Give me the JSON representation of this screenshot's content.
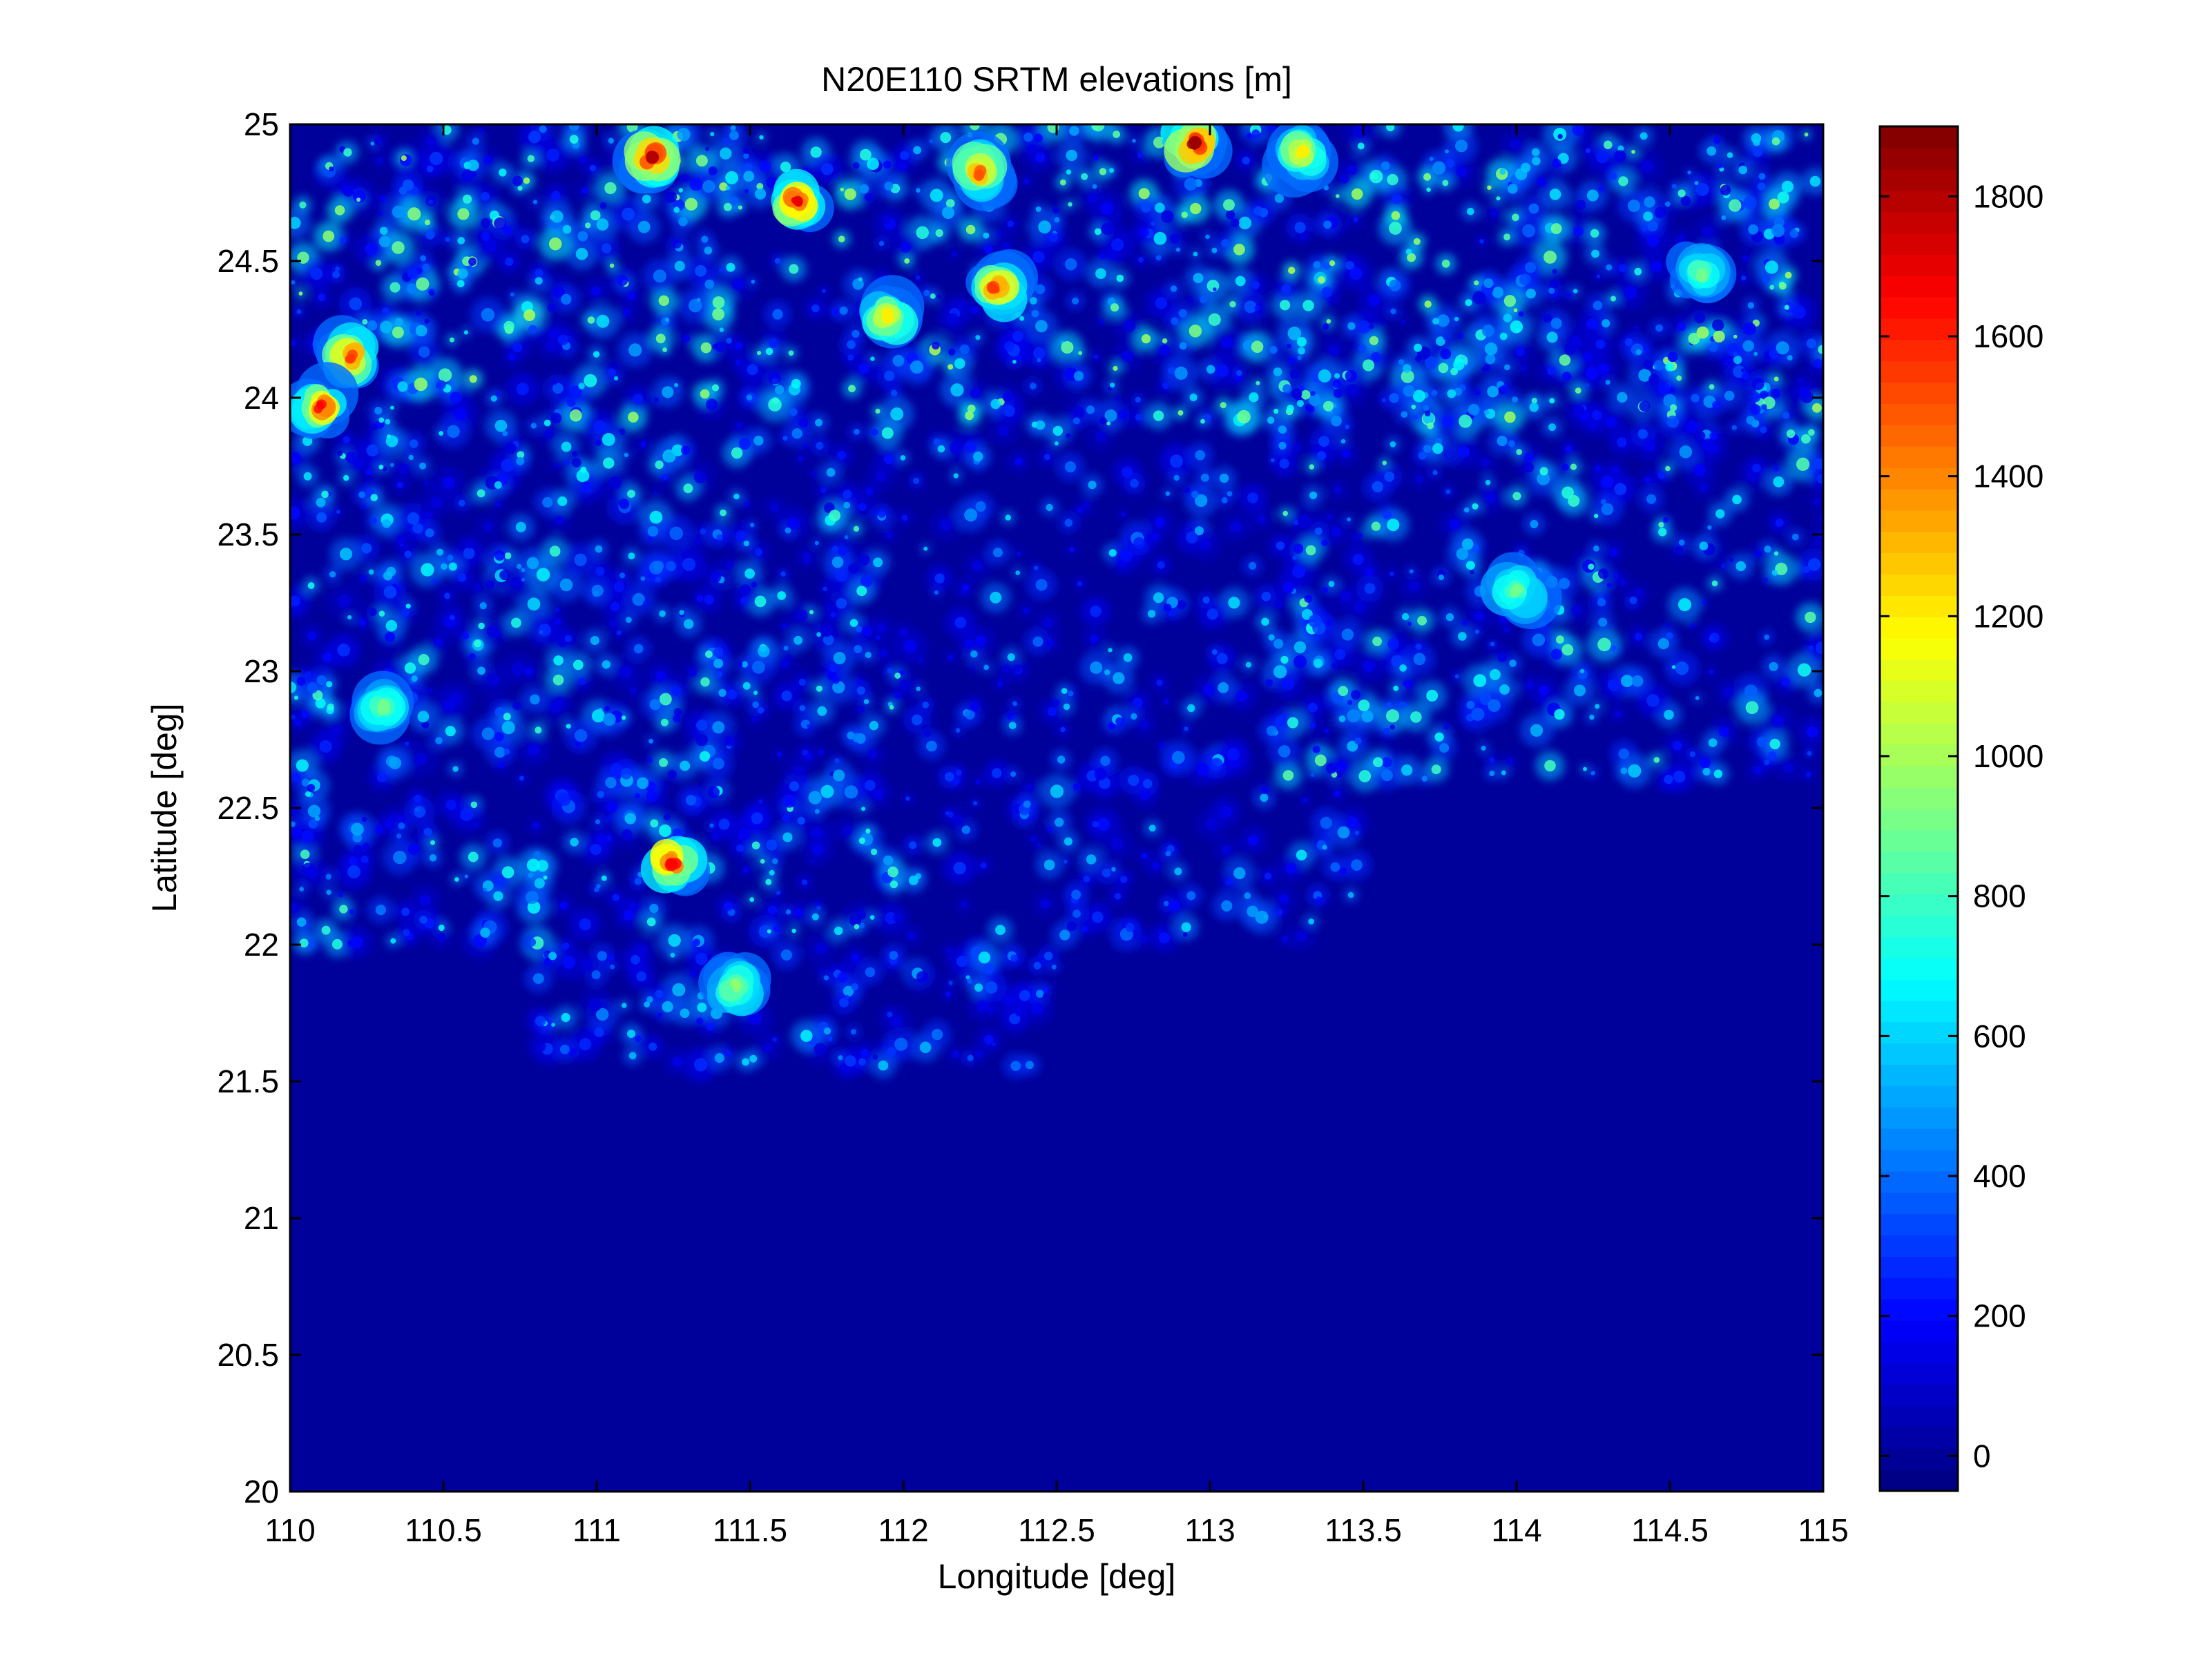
{
  "chart_data": {
    "type": "heatmap",
    "title": "N20E110 SRTM elevations [m]",
    "xlabel": "Longitude [deg]",
    "ylabel": "Latitude [deg]",
    "xlim": [
      110,
      115
    ],
    "ylim": [
      20,
      25
    ],
    "xticks": [
      110,
      110.5,
      111,
      111.5,
      112,
      112.5,
      113,
      113.5,
      114,
      114.5,
      115
    ],
    "xtick_labels": [
      "110",
      "110.5",
      "111",
      "111.5",
      "112",
      "112.5",
      "113",
      "113.5",
      "114",
      "114.5",
      "115"
    ],
    "yticks": [
      20,
      20.5,
      21,
      21.5,
      22,
      22.5,
      23,
      23.5,
      24,
      24.5,
      25
    ],
    "ytick_labels": [
      "20",
      "20.5",
      "21",
      "21.5",
      "22",
      "22.5",
      "23",
      "23.5",
      "24",
      "24.5",
      "25"
    ],
    "colormap": "jet",
    "colorbar": {
      "clim": [
        -50,
        1900
      ],
      "ticks": [
        0,
        200,
        400,
        600,
        800,
        1000,
        1200,
        1400,
        1600,
        1800
      ],
      "tick_labels": [
        "0",
        "200",
        "400",
        "600",
        "800",
        "1000",
        "1200",
        "1400",
        "1600",
        "1800"
      ],
      "placement": "right"
    },
    "grid": false,
    "peaks": [
      {
        "lon": 111.18,
        "lat": 24.88,
        "elev": 1800
      },
      {
        "lon": 112.95,
        "lat": 24.93,
        "elev": 1850
      },
      {
        "lon": 111.65,
        "lat": 24.72,
        "elev": 1700
      },
      {
        "lon": 112.25,
        "lat": 24.82,
        "elev": 1500
      },
      {
        "lon": 112.3,
        "lat": 24.4,
        "elev": 1550
      },
      {
        "lon": 110.2,
        "lat": 24.15,
        "elev": 1550
      },
      {
        "lon": 110.1,
        "lat": 23.97,
        "elev": 1650
      },
      {
        "lon": 111.25,
        "lat": 22.3,
        "elev": 1650
      },
      {
        "lon": 111.95,
        "lat": 24.3,
        "elev": 1200
      },
      {
        "lon": 113.3,
        "lat": 24.9,
        "elev": 1200
      },
      {
        "lon": 114.0,
        "lat": 23.3,
        "elev": 900
      },
      {
        "lon": 110.3,
        "lat": 22.87,
        "elev": 900
      },
      {
        "lon": 111.45,
        "lat": 21.85,
        "elev": 950
      },
      {
        "lon": 114.6,
        "lat": 24.45,
        "elev": 900
      }
    ]
  }
}
